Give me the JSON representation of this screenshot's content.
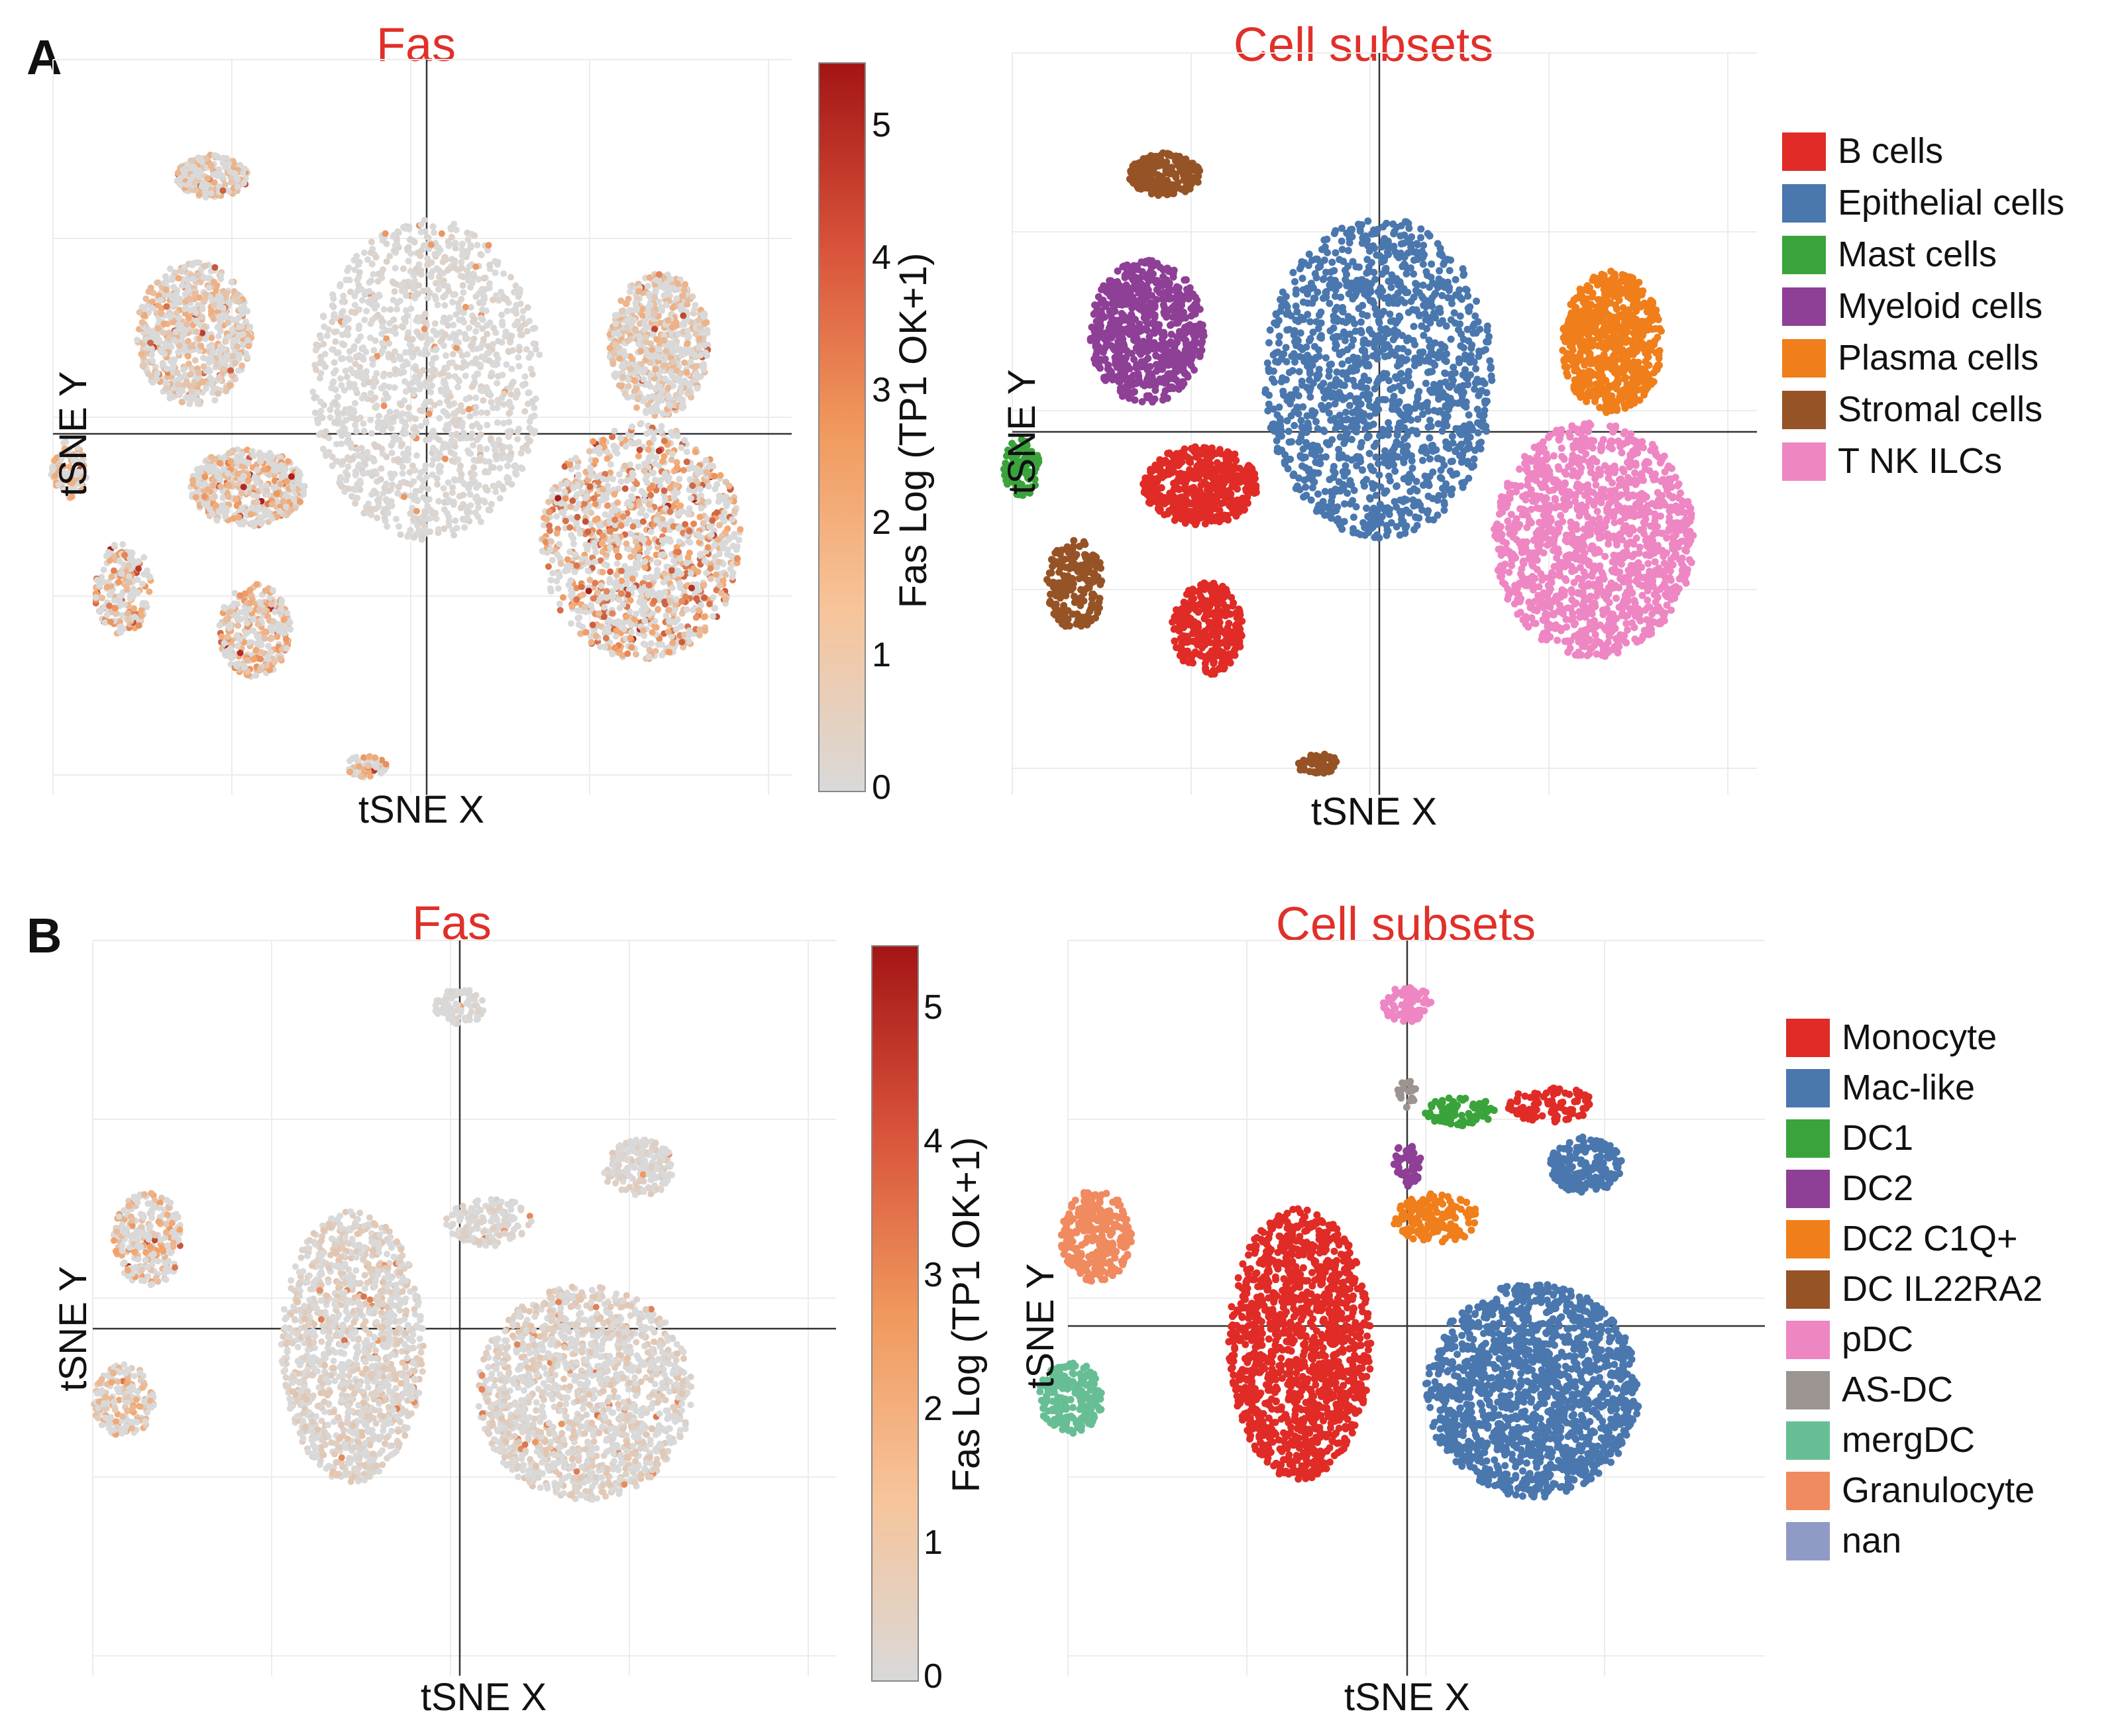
{
  "figure": {
    "panels": [
      {
        "letter": "A",
        "expression_plot": {
          "title": "Fas",
          "xlabel": "tSNE X",
          "ylabel": "tSNE Y",
          "colorbar_label": "Fas Log (TP1 OK+1)",
          "colorbar_ticks": [
            "0",
            "1",
            "2",
            "3",
            "4",
            "5"
          ]
        },
        "subset_plot": {
          "title": "Cell subsets",
          "xlabel": "tSNE X",
          "ylabel": "tSNE Y",
          "legend": [
            "B cells",
            "Epithelial cells",
            "Mast cells",
            "Myeloid cells",
            "Plasma cells",
            "Stromal cells",
            "T NK ILCs"
          ]
        }
      },
      {
        "letter": "B",
        "expression_plot": {
          "title": "Fas",
          "xlabel": "tSNE X",
          "ylabel": "tSNE Y",
          "colorbar_label": "Fas Log (TP1 OK+1)",
          "colorbar_ticks": [
            "0",
            "1",
            "2",
            "3",
            "4",
            "5"
          ]
        },
        "subset_plot": {
          "title": "Cell subsets",
          "xlabel": "tSNE X",
          "ylabel": "tSNE Y",
          "legend": [
            "Monocyte",
            "Mac-like",
            "DC1",
            "DC2",
            "DC2 C1Q+",
            "DC IL22RA2",
            "pDC",
            "AS-DC",
            "mergDC",
            "Granulocyte",
            "nan"
          ]
        }
      }
    ]
  },
  "chart_data": [
    {
      "type": "scatter",
      "panel": "A",
      "title": "Fas",
      "xlabel": "tSNE X",
      "ylabel": "tSNE Y",
      "color_scale": {
        "label": "Fas Log (TP1 OK+1)",
        "range": [
          0,
          5.5
        ],
        "ticks": [
          0,
          1,
          2,
          3,
          4,
          5
        ],
        "low_color": "#d9d9d9",
        "mid_color": "#f4a46a",
        "high_color": "#a31515"
      },
      "clusters": [
        {
          "name": "Stromal cells",
          "x": -6.0,
          "y": 7.2,
          "sx": 1.0,
          "sy": 0.6,
          "n": 200,
          "fas": 1.1
        },
        {
          "name": "Myeloid cells",
          "x": -6.5,
          "y": 2.8,
          "sx": 1.6,
          "sy": 2.0,
          "n": 700,
          "fas": 1.1
        },
        {
          "name": "Epithelial cells",
          "x": 0.0,
          "y": 1.5,
          "sx": 3.2,
          "sy": 4.5,
          "n": 1400,
          "fas": 0.2
        },
        {
          "name": "Plasma cells",
          "x": 6.5,
          "y": 2.5,
          "sx": 1.4,
          "sy": 2.0,
          "n": 700,
          "fas": 1.0
        },
        {
          "name": "T NK ILCs",
          "x": 6.0,
          "y": -3.0,
          "sx": 2.8,
          "sy": 3.3,
          "n": 1300,
          "fas": 2.0
        },
        {
          "name": "B cells",
          "x": -5.0,
          "y": -1.5,
          "sx": 1.6,
          "sy": 1.1,
          "n": 500,
          "fas": 1.4
        },
        {
          "name": "B cells",
          "x": -4.8,
          "y": -5.5,
          "sx": 1.0,
          "sy": 1.3,
          "n": 300,
          "fas": 1.5
        },
        {
          "name": "Mast cells",
          "x": -10.0,
          "y": -1.0,
          "sx": 0.5,
          "sy": 0.8,
          "n": 100,
          "fas": 1.4
        },
        {
          "name": "Stromal cells",
          "x": -8.5,
          "y": -4.3,
          "sx": 0.8,
          "sy": 1.3,
          "n": 200,
          "fas": 1.7
        },
        {
          "name": "Stromal cells",
          "x": -1.7,
          "y": -9.3,
          "sx": 0.6,
          "sy": 0.3,
          "n": 60,
          "fas": 1.7
        }
      ]
    },
    {
      "type": "scatter",
      "panel": "A",
      "title": "Cell subsets",
      "xlabel": "tSNE X",
      "ylabel": "tSNE Y",
      "categories": [
        "B cells",
        "Epithelial cells",
        "Mast cells",
        "Myeloid cells",
        "Plasma cells",
        "Stromal cells",
        "T NK ILCs"
      ],
      "colors": [
        "#e02b26",
        "#4a77ae",
        "#3ba33b",
        "#8e3f96",
        "#f07e1a",
        "#965326",
        "#ee86c3"
      ],
      "clusters": [
        {
          "cat": 5,
          "x": -6.0,
          "y": 7.2,
          "sx": 1.0,
          "sy": 0.6,
          "n": 200
        },
        {
          "cat": 3,
          "x": -6.5,
          "y": 2.8,
          "sx": 1.6,
          "sy": 2.0,
          "n": 700
        },
        {
          "cat": 1,
          "x": 0.0,
          "y": 1.5,
          "sx": 3.2,
          "sy": 4.5,
          "n": 1400
        },
        {
          "cat": 4,
          "x": 6.5,
          "y": 2.5,
          "sx": 1.4,
          "sy": 2.0,
          "n": 700
        },
        {
          "cat": 6,
          "x": 6.0,
          "y": -3.0,
          "sx": 2.8,
          "sy": 3.3,
          "n": 1300
        },
        {
          "cat": 0,
          "x": -5.0,
          "y": -1.5,
          "sx": 1.6,
          "sy": 1.1,
          "n": 500
        },
        {
          "cat": 0,
          "x": -4.8,
          "y": -5.5,
          "sx": 1.0,
          "sy": 1.3,
          "n": 300
        },
        {
          "cat": 2,
          "x": -10.0,
          "y": -1.0,
          "sx": 0.5,
          "sy": 0.8,
          "n": 100
        },
        {
          "cat": 5,
          "x": -8.5,
          "y": -4.3,
          "sx": 0.8,
          "sy": 1.3,
          "n": 200
        },
        {
          "cat": 5,
          "x": -1.7,
          "y": -9.3,
          "sx": 0.6,
          "sy": 0.3,
          "n": 60
        }
      ]
    },
    {
      "type": "scatter",
      "panel": "B",
      "title": "Fas",
      "xlabel": "tSNE X",
      "ylabel": "tSNE Y",
      "color_scale": {
        "label": "Fas Log (TP1 OK+1)",
        "range": [
          0,
          5.5
        ],
        "ticks": [
          0,
          1,
          2,
          3,
          4,
          5
        ],
        "low_color": "#d9d9d9",
        "mid_color": "#f4a46a",
        "high_color": "#a31515"
      },
      "clusters": [
        {
          "name": "Monocyte",
          "x": -3.0,
          "y": -0.5,
          "sx": 2.0,
          "sy": 3.8,
          "n": 1300,
          "fas": 0.5
        },
        {
          "name": "Mac-like",
          "x": 3.5,
          "y": -1.8,
          "sx": 3.0,
          "sy": 3.0,
          "n": 1500,
          "fas": 0.5
        },
        {
          "name": "Mac-like",
          "x": 5.0,
          "y": 4.5,
          "sx": 1.0,
          "sy": 0.8,
          "n": 200,
          "fas": 0.4
        },
        {
          "name": "pDC",
          "x": 0.0,
          "y": 9.0,
          "sx": 0.7,
          "sy": 0.5,
          "n": 80,
          "fas": 0.2
        },
        {
          "name": "DC2 C1Q+",
          "x": 0.8,
          "y": 3.0,
          "sx": 1.2,
          "sy": 0.7,
          "n": 150,
          "fas": 0.3
        },
        {
          "name": "Granulocyte",
          "x": -8.7,
          "y": 2.5,
          "sx": 1.0,
          "sy": 1.3,
          "n": 250,
          "fas": 1.4
        },
        {
          "name": "mergDC",
          "x": -9.4,
          "y": -2.0,
          "sx": 0.9,
          "sy": 1.0,
          "n": 200,
          "fas": 1.2
        }
      ]
    },
    {
      "type": "scatter",
      "panel": "B",
      "title": "Cell subsets",
      "xlabel": "tSNE X",
      "ylabel": "tSNE Y",
      "categories": [
        "Monocyte",
        "Mac-like",
        "DC1",
        "DC2",
        "DC2 C1Q+",
        "DC IL22RA2",
        "pDC",
        "AS-DC",
        "mergDC",
        "Granulocyte",
        "nan"
      ],
      "colors": [
        "#e02b26",
        "#4a77ae",
        "#3ba33b",
        "#8e3f96",
        "#f07e1a",
        "#965326",
        "#ee86c3",
        "#9b9490",
        "#67be95",
        "#f08a5f",
        "#8f9ac7"
      ],
      "clusters": [
        {
          "cat": 0,
          "x": -3.0,
          "y": -0.5,
          "sx": 2.0,
          "sy": 3.8,
          "n": 1300
        },
        {
          "cat": 1,
          "x": 3.5,
          "y": -1.8,
          "sx": 3.0,
          "sy": 3.0,
          "n": 1500
        },
        {
          "cat": 1,
          "x": 5.0,
          "y": 4.5,
          "sx": 1.0,
          "sy": 0.8,
          "n": 200
        },
        {
          "cat": 6,
          "x": 0.0,
          "y": 9.0,
          "sx": 0.7,
          "sy": 0.5,
          "n": 80
        },
        {
          "cat": 2,
          "x": 1.5,
          "y": 6.0,
          "sx": 1.0,
          "sy": 0.4,
          "n": 90
        },
        {
          "cat": 0,
          "x": 4.0,
          "y": 6.2,
          "sx": 1.2,
          "sy": 0.5,
          "n": 100
        },
        {
          "cat": 3,
          "x": 0.0,
          "y": 4.5,
          "sx": 0.4,
          "sy": 0.6,
          "n": 60
        },
        {
          "cat": 7,
          "x": 0.0,
          "y": 6.5,
          "sx": 0.3,
          "sy": 0.4,
          "n": 20
        },
        {
          "cat": 4,
          "x": 0.8,
          "y": 3.0,
          "sx": 1.2,
          "sy": 0.7,
          "n": 150
        },
        {
          "cat": 9,
          "x": -8.7,
          "y": 2.5,
          "sx": 1.0,
          "sy": 1.3,
          "n": 250
        },
        {
          "cat": 8,
          "x": -9.4,
          "y": -2.0,
          "sx": 0.9,
          "sy": 1.0,
          "n": 200
        }
      ]
    }
  ]
}
